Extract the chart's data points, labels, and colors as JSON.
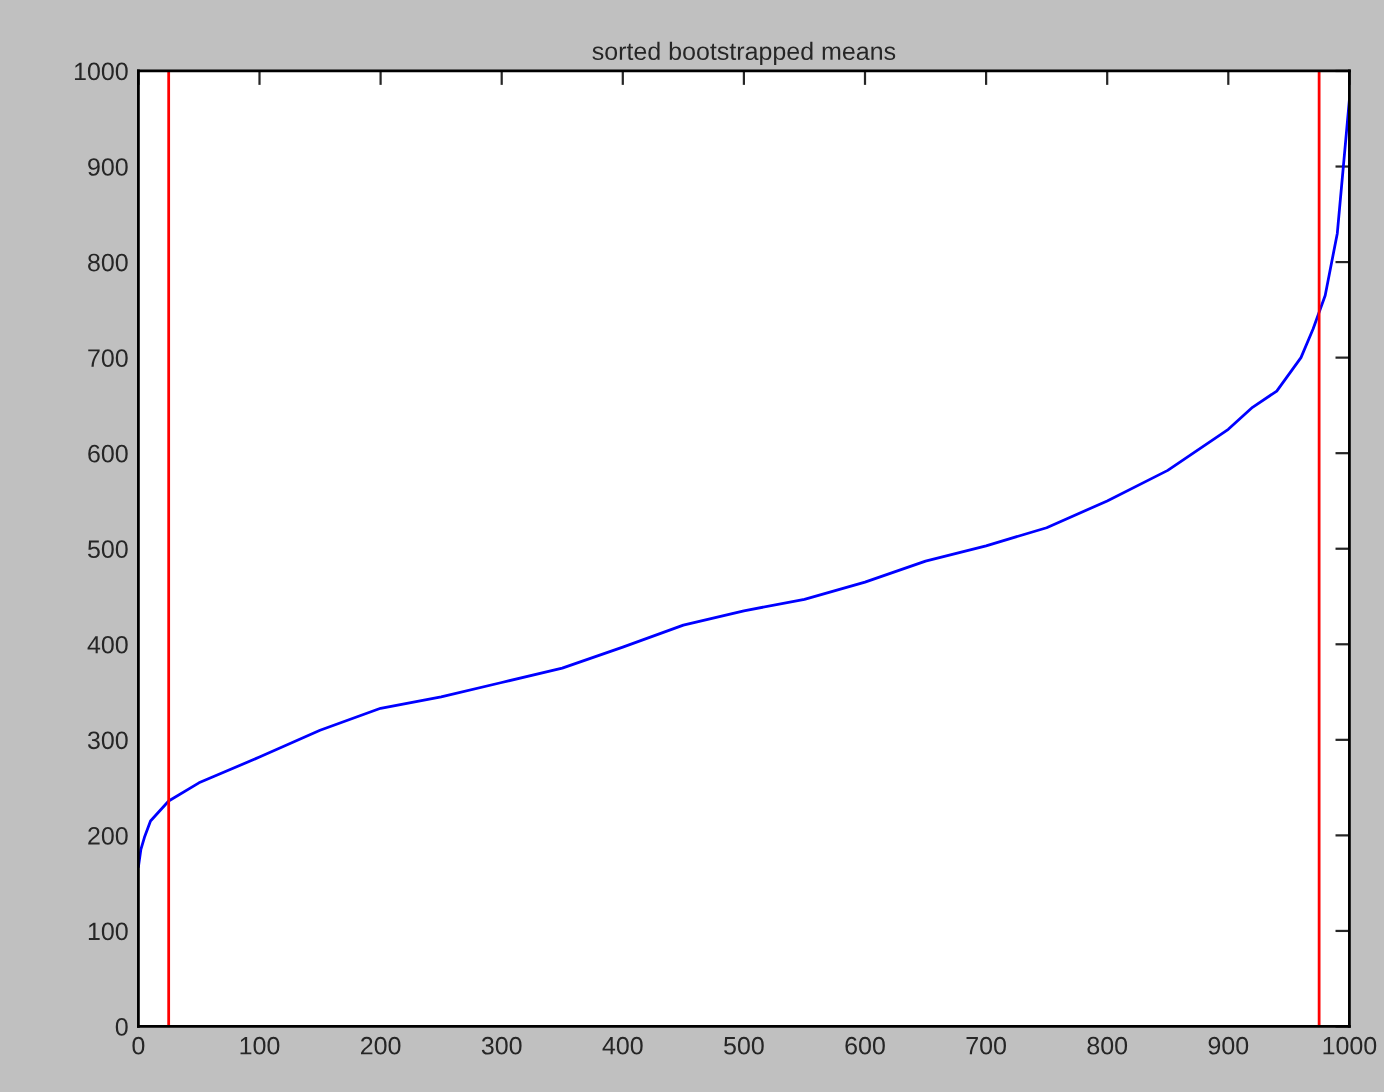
{
  "chart_data": {
    "type": "line",
    "title": "sorted bootstrapped means",
    "x": [
      0,
      2,
      5,
      10,
      25,
      50,
      100,
      150,
      200,
      250,
      300,
      350,
      400,
      450,
      500,
      550,
      600,
      650,
      700,
      750,
      800,
      850,
      900,
      920,
      940,
      960,
      970,
      980,
      990,
      995,
      1000
    ],
    "series": [
      {
        "color": "#0000ff",
        "values": [
          167,
          185,
          198,
          215,
          236,
          255,
          282,
          310,
          333,
          345,
          360,
          375,
          397,
          420,
          435,
          447,
          465,
          487,
          503,
          522,
          550,
          582,
          625,
          648,
          665,
          700,
          730,
          765,
          830,
          900,
          970
        ]
      }
    ],
    "xlim": [
      0,
      1000
    ],
    "ylim": [
      0,
      1000
    ],
    "xticks": [
      0,
      100,
      200,
      300,
      400,
      500,
      600,
      700,
      800,
      900,
      1000
    ],
    "yticks": [
      0,
      100,
      200,
      300,
      400,
      500,
      600,
      700,
      800,
      900,
      1000
    ],
    "ref_lines": [
      {
        "axis": "x",
        "value": 25,
        "color": "#ff0000"
      },
      {
        "axis": "x",
        "value": 975,
        "color": "#ff0000"
      }
    ],
    "grid": false,
    "legend": false,
    "marker": "none",
    "line_style": "solid"
  }
}
